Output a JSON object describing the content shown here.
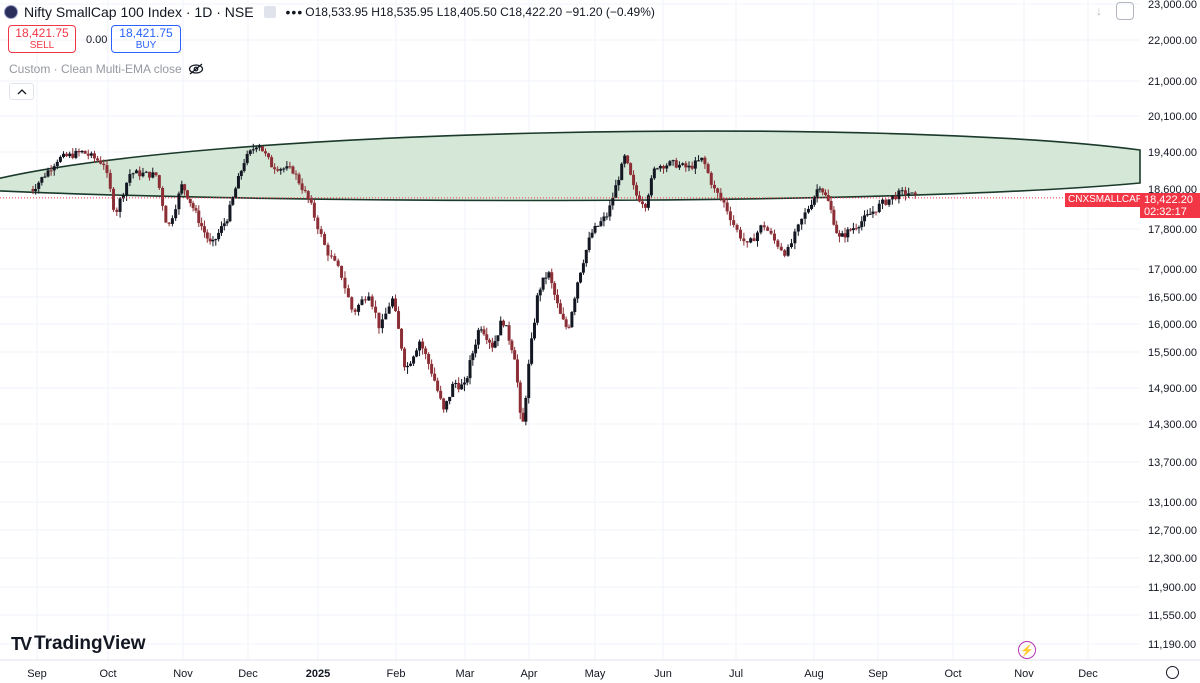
{
  "header": {
    "symbol_title": "Nifty SmallCap 100 Index · 1D · NSE",
    "more_icon": "more-dots-icon",
    "ohlc": "O18,533.95 H18,535.95 L18,405.50 C18,422.20 −91.20 (−0.49%)"
  },
  "trade": {
    "sell_price": "18,421.75",
    "sell_label": "SELL",
    "spread": "0.00",
    "buy_price": "18,421.75",
    "buy_label": "BUY"
  },
  "indicator": {
    "label": "Custom · Clean Multi-EMA close",
    "eye_icon": "eye-off-icon"
  },
  "logo": {
    "text": "TradingView"
  },
  "last_price": {
    "symbol": "CNXSMALLCAP",
    "price": "18,422.20",
    "countdown": "02:32:17"
  },
  "colors": {
    "up": "#131722",
    "down": "#8b2e35",
    "ellipse_fill": "#d5e8d7",
    "ellipse_stroke": "#1b3a2b",
    "accent_red": "#f23645",
    "accent_blue": "#2962ff"
  },
  "chart_data": {
    "type": "candlestick",
    "title": "Nifty SmallCap 100 Index · 1D · NSE",
    "y_tick_labels": [
      "23,000.00",
      "22,000.00",
      "21,000.00",
      "20,100.00",
      "19,400.00",
      "18,600.00",
      "17,800.00",
      "17,000.00",
      "16,500.00",
      "16,000.00",
      "15,500.00",
      "14,900.00",
      "14,300.00",
      "13,700.00",
      "13,100.00",
      "12,700.00",
      "12,300.00",
      "11,900.00",
      "11,550.00",
      "11,190.00"
    ],
    "y_ticks": [
      23000,
      22000,
      21000,
      20100,
      19400,
      18600,
      17800,
      17000,
      16500,
      16000,
      15500,
      14900,
      14300,
      13700,
      13100,
      12700,
      12300,
      11900,
      11550,
      11190
    ],
    "x_tick_labels": [
      "Sep",
      "Oct",
      "Nov",
      "Dec",
      "2025",
      "Feb",
      "Mar",
      "Apr",
      "May",
      "Jun",
      "Jul",
      "Aug",
      "Sep",
      "Oct",
      "Nov",
      "Dec"
    ],
    "x_tick_months": [
      0,
      1,
      2,
      3,
      4,
      5,
      6,
      7,
      8,
      9,
      10,
      11,
      12,
      13,
      14,
      15
    ],
    "bold_labels": [
      "2025"
    ],
    "x_start": "2024-08-22",
    "price_path": [
      [
        0,
        18600
      ],
      [
        0.35,
        19250
      ],
      [
        0.7,
        19400
      ],
      [
        1.0,
        19150
      ],
      [
        1.15,
        18100
      ],
      [
        1.35,
        18950
      ],
      [
        1.7,
        18900
      ],
      [
        1.85,
        17800
      ],
      [
        2.05,
        18700
      ],
      [
        2.35,
        17850
      ],
      [
        2.5,
        17450
      ],
      [
        2.75,
        18050
      ],
      [
        3.0,
        19200
      ],
      [
        3.2,
        19600
      ],
      [
        3.4,
        19100
      ],
      [
        3.7,
        19000
      ],
      [
        3.95,
        18300
      ],
      [
        4.15,
        17400
      ],
      [
        4.35,
        16900
      ],
      [
        4.5,
        16200
      ],
      [
        4.7,
        16600
      ],
      [
        4.85,
        15900
      ],
      [
        5.0,
        16500
      ],
      [
        5.2,
        15200
      ],
      [
        5.4,
        15700
      ],
      [
        5.6,
        15100
      ],
      [
        5.75,
        14500
      ],
      [
        5.9,
        15000
      ],
      [
        6.05,
        14900
      ],
      [
        6.3,
        16000
      ],
      [
        6.5,
        15600
      ],
      [
        6.65,
        16100
      ],
      [
        6.85,
        15400
      ],
      [
        6.95,
        14100
      ],
      [
        7.05,
        15200
      ],
      [
        7.2,
        16600
      ],
      [
        7.35,
        16950
      ],
      [
        7.55,
        16100
      ],
      [
        7.65,
        15900
      ],
      [
        7.8,
        16800
      ],
      [
        8.0,
        17700
      ],
      [
        8.25,
        18100
      ],
      [
        8.5,
        19300
      ],
      [
        8.65,
        18500
      ],
      [
        8.8,
        18300
      ],
      [
        8.95,
        19100
      ],
      [
        9.2,
        19150
      ],
      [
        9.4,
        19050
      ],
      [
        9.6,
        19250
      ],
      [
        9.75,
        18600
      ],
      [
        9.9,
        18300
      ],
      [
        10.05,
        17800
      ],
      [
        10.2,
        17450
      ],
      [
        10.4,
        17900
      ],
      [
        10.55,
        17550
      ],
      [
        10.7,
        17300
      ],
      [
        10.9,
        18000
      ],
      [
        11.15,
        18700
      ],
      [
        11.3,
        18300
      ],
      [
        11.45,
        17600
      ],
      [
        11.6,
        17750
      ],
      [
        11.9,
        18050
      ],
      [
        12.1,
        18300
      ],
      [
        12.3,
        18480
      ],
      [
        12.45,
        18540
      ],
      [
        12.55,
        18422
      ]
    ],
    "annotation": {
      "shape": "rotated ellipse band",
      "fill": "#d5e8d7",
      "price_range_top": 19800,
      "price_range_bottom": 18400
    },
    "last_close": 18422.2,
    "ylim": [
      11000,
      23100
    ]
  }
}
